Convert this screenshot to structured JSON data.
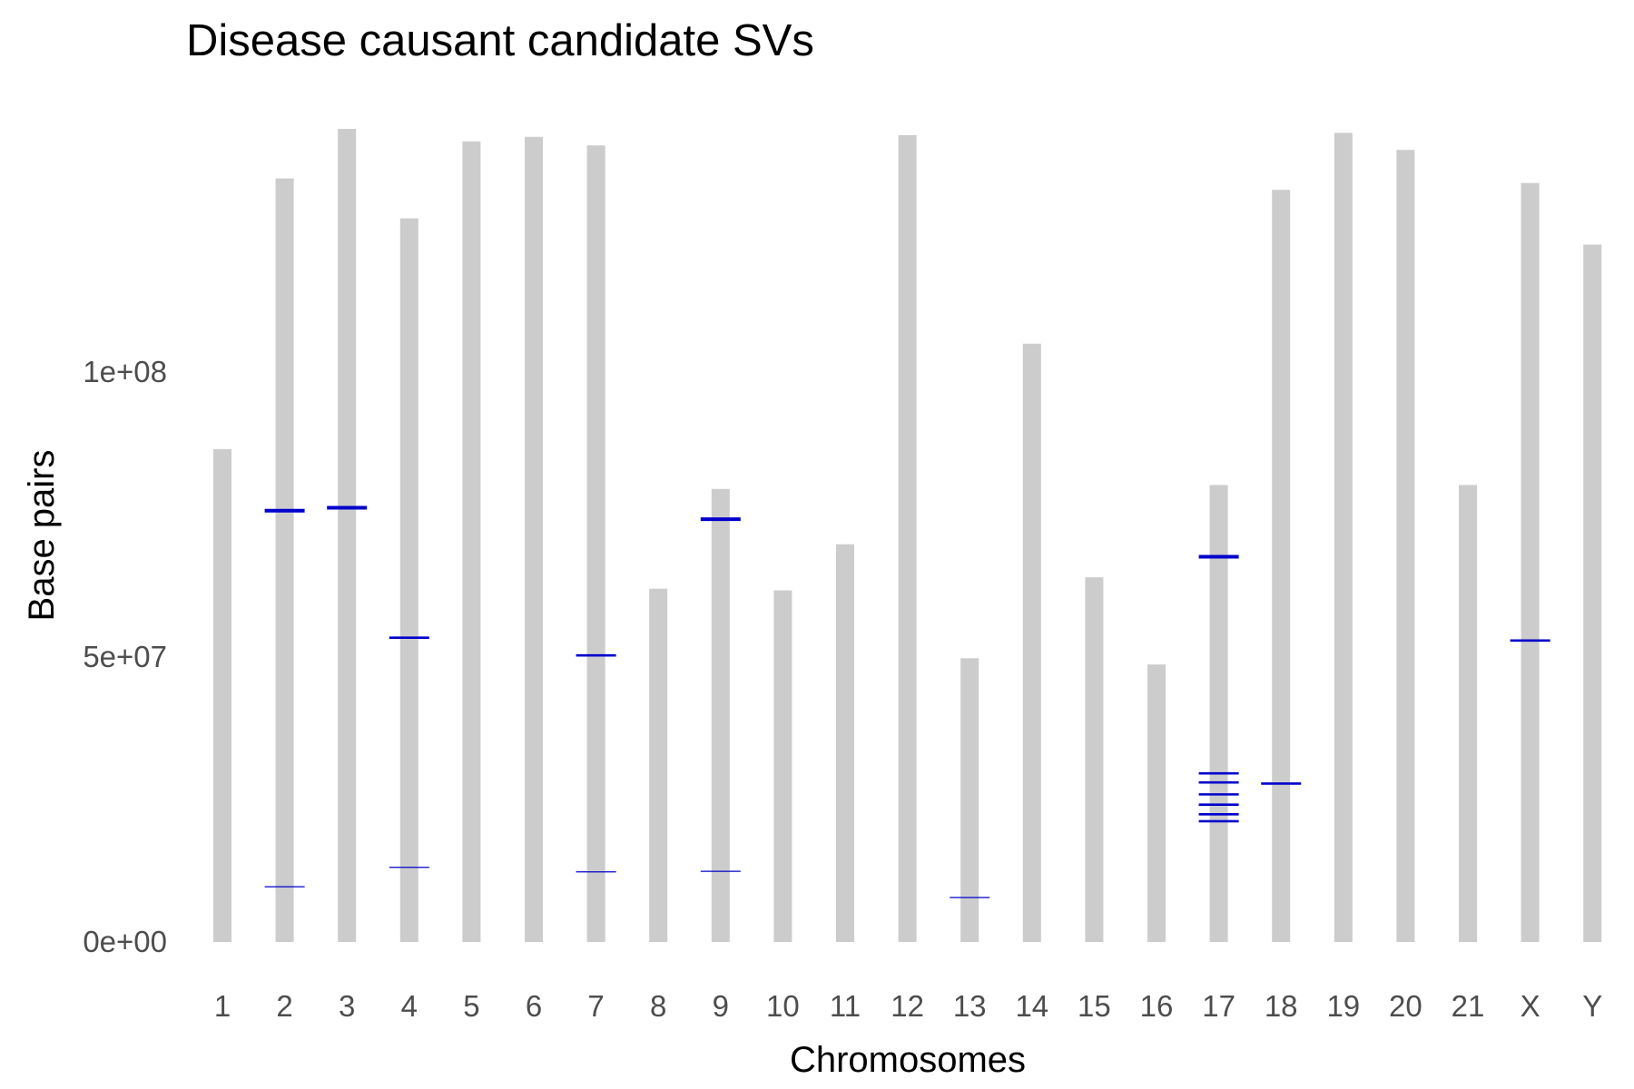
{
  "chart_data": {
    "type": "bar",
    "title": "Disease causant candidate SVs",
    "xlabel": "Chromosomes",
    "ylabel": "Base pairs",
    "categories": [
      "1",
      "2",
      "3",
      "4",
      "5",
      "6",
      "7",
      "8",
      "9",
      "10",
      "11",
      "12",
      "13",
      "14",
      "15",
      "16",
      "17",
      "18",
      "19",
      "20",
      "21",
      "X",
      "Y"
    ],
    "values": [
      86500000,
      134000000,
      142700000,
      127000000,
      140500000,
      141300000,
      139800000,
      62000000,
      79500000,
      61700000,
      69800000,
      141600000,
      49800000,
      105000000,
      64000000,
      48700000,
      80200000,
      132000000,
      142000000,
      139000000,
      80200000,
      133200000,
      122400000
    ],
    "ylim": [
      0,
      142700000
    ],
    "yticks": [
      0,
      50000000,
      100000000
    ],
    "ytick_labels": [
      "0e+00",
      "5e+07",
      "1e+08"
    ],
    "grid": false,
    "legend": "none",
    "bar_color": "#cccccc",
    "marker_color": "#0000cc",
    "sv_markers": [
      {
        "chromosome": "2",
        "position": 75700000,
        "size": "large"
      },
      {
        "chromosome": "2",
        "position": 9700000,
        "size": "small"
      },
      {
        "chromosome": "3",
        "position": 76200000,
        "size": "large"
      },
      {
        "chromosome": "4",
        "position": 53400000,
        "size": "medium"
      },
      {
        "chromosome": "4",
        "position": 13100000,
        "size": "small"
      },
      {
        "chromosome": "7",
        "position": 50300000,
        "size": "medium"
      },
      {
        "chromosome": "7",
        "position": 12300000,
        "size": "small"
      },
      {
        "chromosome": "9",
        "position": 74200000,
        "size": "large"
      },
      {
        "chromosome": "9",
        "position": 12400000,
        "size": "small"
      },
      {
        "chromosome": "13",
        "position": 7800000,
        "size": "small"
      },
      {
        "chromosome": "17",
        "position": 67600000,
        "size": "large"
      },
      {
        "chromosome": "17",
        "position": 29600000,
        "size": "medium"
      },
      {
        "chromosome": "17",
        "position": 28000000,
        "size": "medium"
      },
      {
        "chromosome": "17",
        "position": 25900000,
        "size": "medium"
      },
      {
        "chromosome": "17",
        "position": 24100000,
        "size": "medium"
      },
      {
        "chromosome": "17",
        "position": 22400000,
        "size": "medium"
      },
      {
        "chromosome": "17",
        "position": 21200000,
        "size": "medium"
      },
      {
        "chromosome": "18",
        "position": 27800000,
        "size": "medium"
      },
      {
        "chromosome": "X",
        "position": 52900000,
        "size": "medium"
      }
    ]
  }
}
